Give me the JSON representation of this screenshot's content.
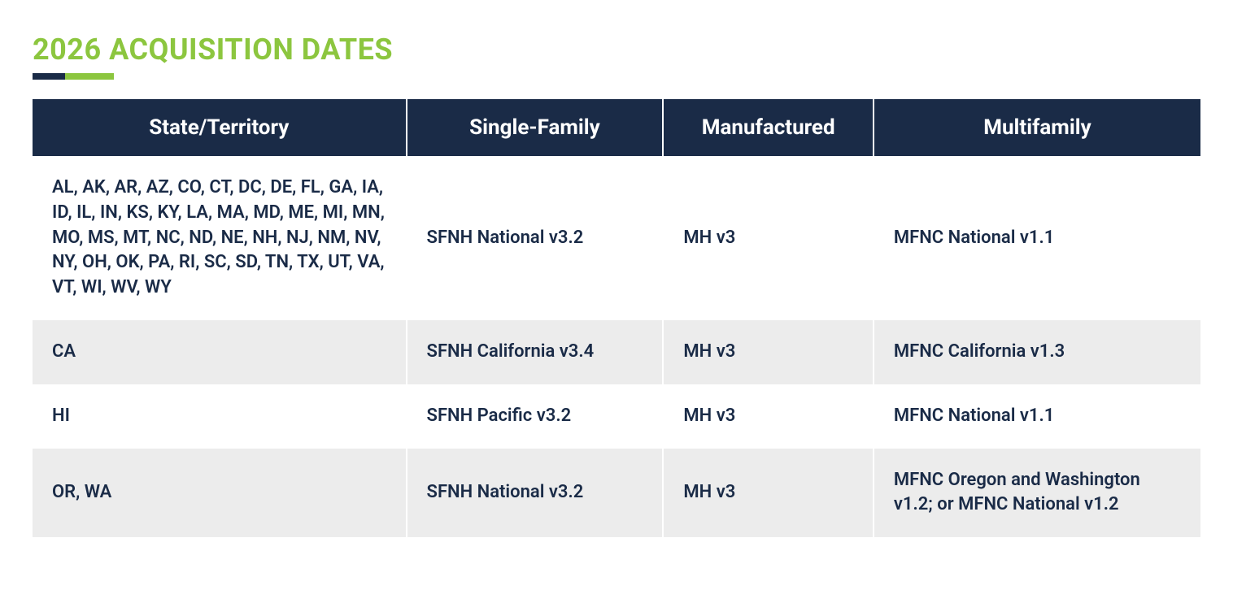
{
  "title": "2026 ACQUISITION DATES",
  "colors": {
    "title": "#8cc63f",
    "headerBg": "#1a2b47",
    "headerText": "#ffffff",
    "cellText": "#1a2b47",
    "rowOdd": "#ffffff",
    "rowEven": "#ececec",
    "underlineDark": "#1a2b47",
    "underlineGreen": "#8cc63f"
  },
  "table": {
    "type": "table",
    "columns": [
      {
        "key": "state",
        "label": "State/Territory",
        "width": "32%"
      },
      {
        "key": "single",
        "label": "Single-Family",
        "width": "22%"
      },
      {
        "key": "manuf",
        "label": "Manufactured",
        "width": "18%"
      },
      {
        "key": "multi",
        "label": "Multifamily",
        "width": "28%"
      }
    ],
    "rows": [
      {
        "state": "AL, AK, AR, AZ, CO, CT, DC, DE, FL, GA, IA, ID, IL, IN, KS, KY, LA, MA, MD, ME, MI, MN, MO, MS, MT, NC, ND, NE, NH, NJ, NM, NV, NY, OH, OK, PA, RI, SC, SD, TN, TX, UT, VA, VT, WI, WV, WY",
        "single": "SFNH National v3.2",
        "manuf": "MH v3",
        "multi": "MFNC National v1.1"
      },
      {
        "state": "CA",
        "single": "SFNH California v3.4",
        "manuf": "MH v3",
        "multi": "MFNC California v1.3"
      },
      {
        "state": "HI",
        "single": "SFNH Pacific v3.2",
        "manuf": "MH v3",
        "multi": "MFNC National v1.1"
      },
      {
        "state": "OR, WA",
        "single": "SFNH National v3.2",
        "manuf": "MH v3",
        "multi": "MFNC Oregon and Washington v1.2; or MFNC National v1.2"
      }
    ]
  }
}
